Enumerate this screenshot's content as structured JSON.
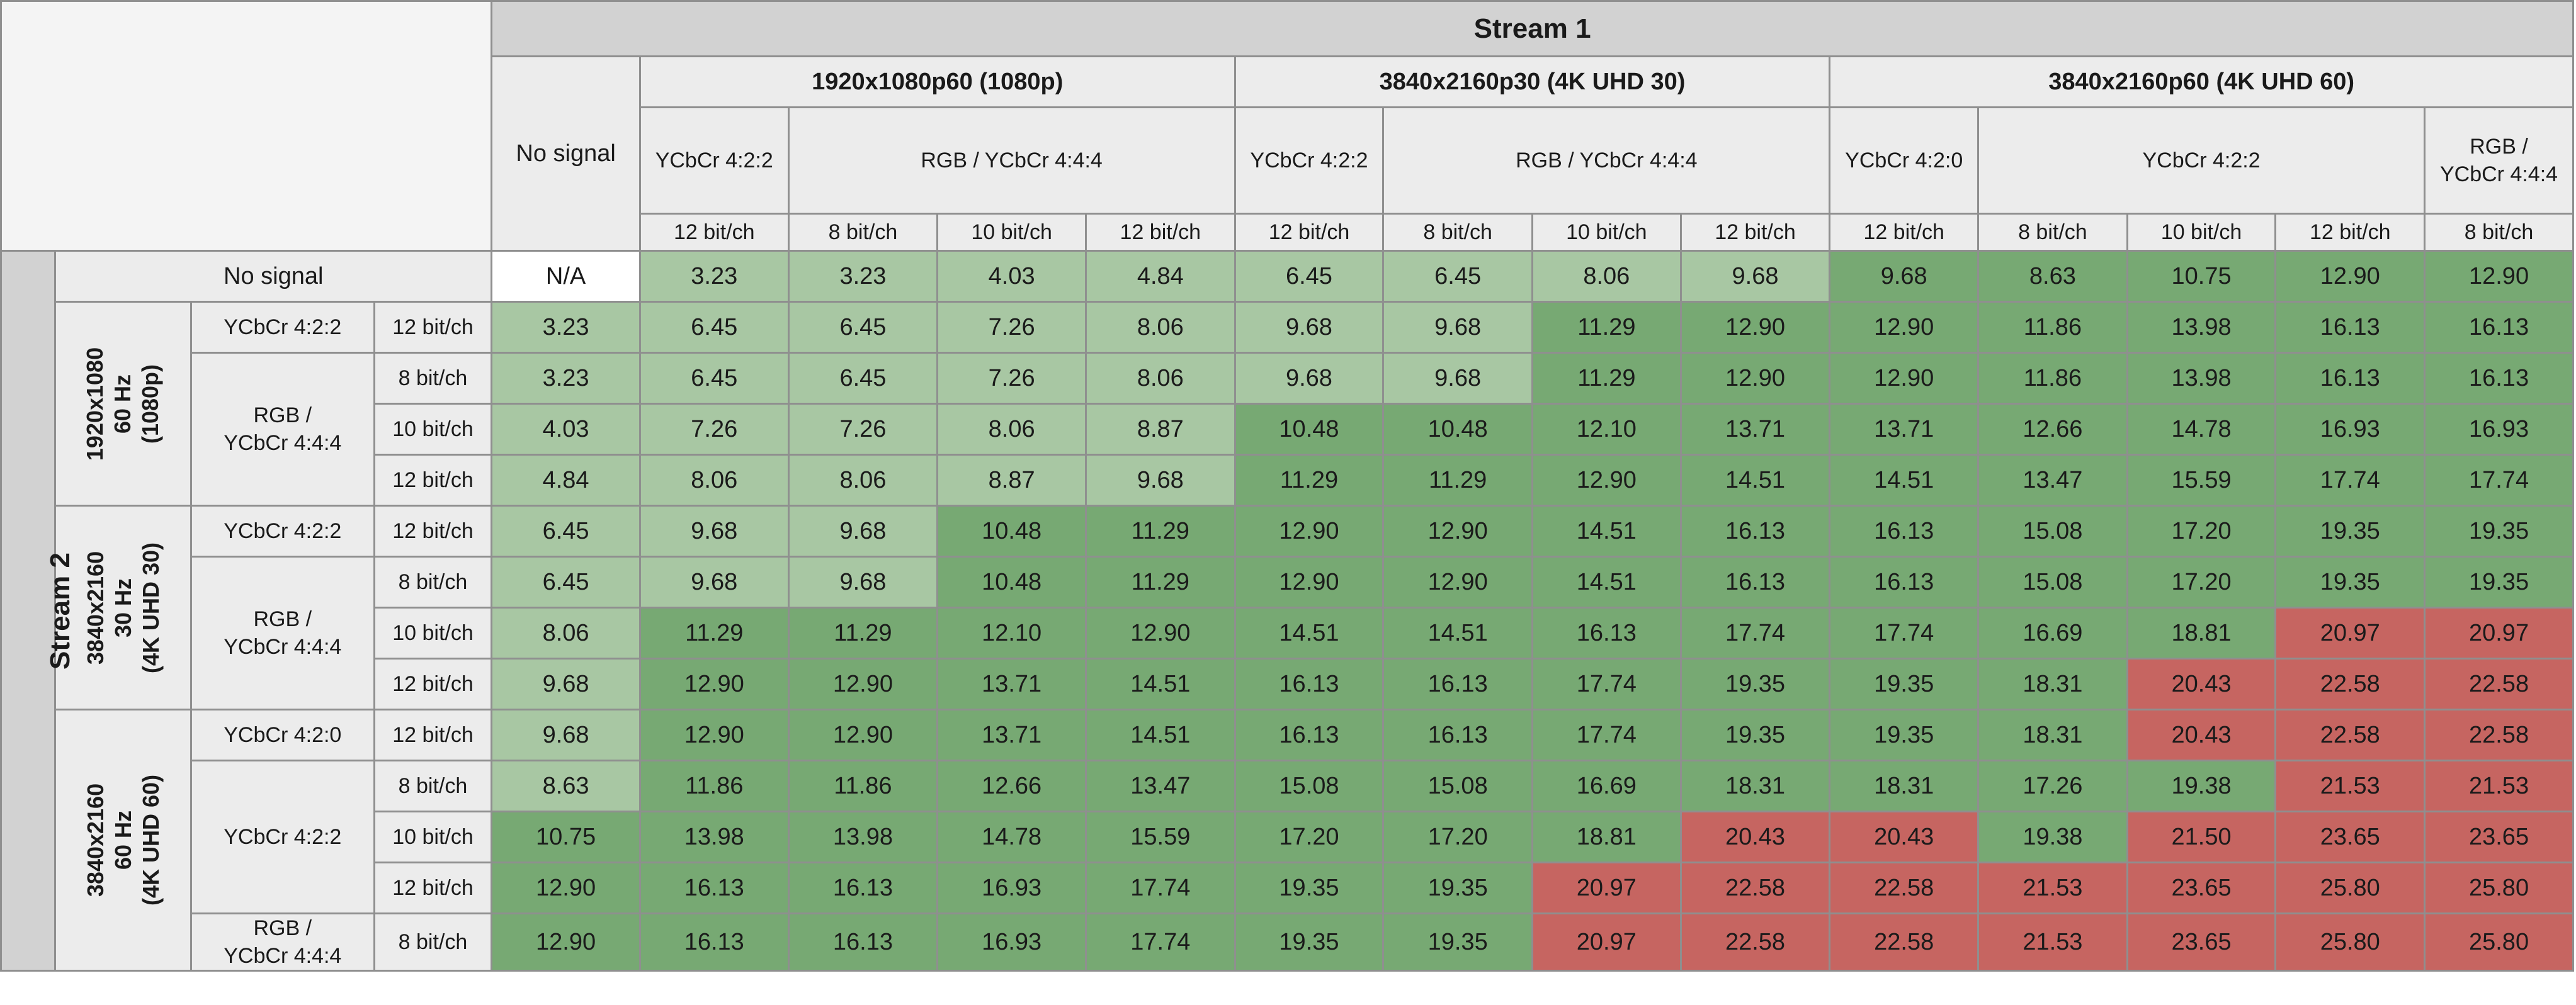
{
  "stream1_label": "Stream 1",
  "stream2_label": "Stream 2",
  "no_signal_label": "No signal",
  "formats": {
    "f1080": "1920x1080p60 (1080p)",
    "f4k30": "3840x2160p30 (4K UHD 30)",
    "f4k60": "3840x2160p60 (4K UHD 60)"
  },
  "row_groups": {
    "g1080": "1920x1080\n60 Hz\n(1080p)",
    "g4k30": "3840x2160\n30 Hz\n(4K UHD 30)",
    "g4k60": "3840x2160\n60 Hz\n(4K UHD 60)"
  },
  "columns": [
    {
      "format": "1920x1080p60 (1080p)",
      "sampling": "YCbCr 4:2:2",
      "depth": "12 bit/ch"
    },
    {
      "format": "1920x1080p60 (1080p)",
      "sampling": "RGB / YCbCr 4:4:4",
      "depth": "8 bit/ch"
    },
    {
      "format": "1920x1080p60 (1080p)",
      "sampling": "RGB / YCbCr 4:4:4",
      "depth": "10 bit/ch"
    },
    {
      "format": "1920x1080p60 (1080p)",
      "sampling": "RGB / YCbCr 4:4:4",
      "depth": "12 bit/ch"
    },
    {
      "format": "3840x2160p30 (4K UHD 30)",
      "sampling": "YCbCr 4:2:2",
      "depth": "12 bit/ch"
    },
    {
      "format": "3840x2160p30 (4K UHD 30)",
      "sampling": "RGB / YCbCr 4:4:4",
      "depth": "8 bit/ch"
    },
    {
      "format": "3840x2160p30 (4K UHD 30)",
      "sampling": "RGB / YCbCr 4:4:4",
      "depth": "10 bit/ch"
    },
    {
      "format": "3840x2160p30 (4K UHD 30)",
      "sampling": "RGB / YCbCr 4:4:4",
      "depth": "12 bit/ch"
    },
    {
      "format": "3840x2160p60 (4K UHD 60)",
      "sampling": "YCbCr 4:2:0",
      "depth": "12 bit/ch"
    },
    {
      "format": "3840x2160p60 (4K UHD 60)",
      "sampling": "YCbCr 4:2:2",
      "depth": "8 bit/ch"
    },
    {
      "format": "3840x2160p60 (4K UHD 60)",
      "sampling": "YCbCr 4:2:2",
      "depth": "10 bit/ch"
    },
    {
      "format": "3840x2160p60 (4K UHD 60)",
      "sampling": "YCbCr 4:2:2",
      "depth": "12 bit/ch"
    },
    {
      "format": "3840x2160p60 (4K UHD 60)",
      "sampling": "RGB / YCbCr 4:4:4",
      "depth": "8 bit/ch"
    }
  ],
  "samplings": {
    "ycc422": "YCbCr 4:2:2",
    "rgb444": "RGB / YCbCr 4:4:4",
    "rgb444_wrapped": "RGB /\nYCbCr 4:4:4",
    "ycc420": "YCbCr 4:2:0"
  },
  "depths": {
    "b8": "8 bit/ch",
    "b10": "10 bit/ch",
    "b12": "12 bit/ch"
  },
  "legend_colors": {
    "na": "#ffffff",
    "light_green": "#a8c7a3",
    "green": "#77a973",
    "red": "#c66561"
  },
  "rows": [
    {
      "stream2": "No signal",
      "values": [
        "N/A",
        "3.23",
        "3.23",
        "4.03",
        "4.84",
        "6.45",
        "6.45",
        "8.06",
        "9.68",
        "9.68",
        "8.63",
        "10.75",
        "12.90",
        "12.90"
      ],
      "levels": [
        "na",
        "lg",
        "lg",
        "lg",
        "lg",
        "lg",
        "lg",
        "lg",
        "lg",
        "g",
        "g",
        "g",
        "g",
        "g"
      ]
    },
    {
      "stream2": "1920x1080 60 Hz (1080p) / YCbCr 4:2:2 / 12 bit/ch",
      "values": [
        "3.23",
        "6.45",
        "6.45",
        "7.26",
        "8.06",
        "9.68",
        "9.68",
        "11.29",
        "12.90",
        "12.90",
        "11.86",
        "13.98",
        "16.13",
        "16.13"
      ],
      "levels": [
        "lg",
        "lg",
        "lg",
        "lg",
        "lg",
        "lg",
        "lg",
        "g",
        "g",
        "g",
        "g",
        "g",
        "g",
        "g"
      ]
    },
    {
      "stream2": "1920x1080 60 Hz (1080p) / RGB / YCbCr 4:4:4 / 8 bit/ch",
      "values": [
        "3.23",
        "6.45",
        "6.45",
        "7.26",
        "8.06",
        "9.68",
        "9.68",
        "11.29",
        "12.90",
        "12.90",
        "11.86",
        "13.98",
        "16.13",
        "16.13"
      ],
      "levels": [
        "lg",
        "lg",
        "lg",
        "lg",
        "lg",
        "lg",
        "lg",
        "g",
        "g",
        "g",
        "g",
        "g",
        "g",
        "g"
      ]
    },
    {
      "stream2": "1920x1080 60 Hz (1080p) / RGB / YCbCr 4:4:4 / 10 bit/ch",
      "values": [
        "4.03",
        "7.26",
        "7.26",
        "8.06",
        "8.87",
        "10.48",
        "10.48",
        "12.10",
        "13.71",
        "13.71",
        "12.66",
        "14.78",
        "16.93",
        "16.93"
      ],
      "levels": [
        "lg",
        "lg",
        "lg",
        "lg",
        "lg",
        "g",
        "g",
        "g",
        "g",
        "g",
        "g",
        "g",
        "g",
        "g"
      ]
    },
    {
      "stream2": "1920x1080 60 Hz (1080p) / RGB / YCbCr 4:4:4 / 12 bit/ch",
      "values": [
        "4.84",
        "8.06",
        "8.06",
        "8.87",
        "9.68",
        "11.29",
        "11.29",
        "12.90",
        "14.51",
        "14.51",
        "13.47",
        "15.59",
        "17.74",
        "17.74"
      ],
      "levels": [
        "lg",
        "lg",
        "lg",
        "lg",
        "lg",
        "g",
        "g",
        "g",
        "g",
        "g",
        "g",
        "g",
        "g",
        "g"
      ]
    },
    {
      "stream2": "3840x2160 30 Hz (4K UHD 30) / YCbCr 4:2:2 / 12 bit/ch",
      "values": [
        "6.45",
        "9.68",
        "9.68",
        "10.48",
        "11.29",
        "12.90",
        "12.90",
        "14.51",
        "16.13",
        "16.13",
        "15.08",
        "17.20",
        "19.35",
        "19.35"
      ],
      "levels": [
        "lg",
        "lg",
        "lg",
        "g",
        "g",
        "g",
        "g",
        "g",
        "g",
        "g",
        "g",
        "g",
        "g",
        "g"
      ]
    },
    {
      "stream2": "3840x2160 30 Hz (4K UHD 30) / RGB / YCbCr 4:4:4 / 8 bit/ch",
      "values": [
        "6.45",
        "9.68",
        "9.68",
        "10.48",
        "11.29",
        "12.90",
        "12.90",
        "14.51",
        "16.13",
        "16.13",
        "15.08",
        "17.20",
        "19.35",
        "19.35"
      ],
      "levels": [
        "lg",
        "lg",
        "lg",
        "g",
        "g",
        "g",
        "g",
        "g",
        "g",
        "g",
        "g",
        "g",
        "g",
        "g"
      ]
    },
    {
      "stream2": "3840x2160 30 Hz (4K UHD 30) / RGB / YCbCr 4:4:4 / 10 bit/ch",
      "values": [
        "8.06",
        "11.29",
        "11.29",
        "12.10",
        "12.90",
        "14.51",
        "14.51",
        "16.13",
        "17.74",
        "17.74",
        "16.69",
        "18.81",
        "20.97",
        "20.97"
      ],
      "levels": [
        "lg",
        "g",
        "g",
        "g",
        "g",
        "g",
        "g",
        "g",
        "g",
        "g",
        "g",
        "g",
        "r",
        "r"
      ]
    },
    {
      "stream2": "3840x2160 30 Hz (4K UHD 30) / RGB / YCbCr 4:4:4 / 12 bit/ch",
      "values": [
        "9.68",
        "12.90",
        "12.90",
        "13.71",
        "14.51",
        "16.13",
        "16.13",
        "17.74",
        "19.35",
        "19.35",
        "18.31",
        "20.43",
        "22.58",
        "22.58"
      ],
      "levels": [
        "lg",
        "g",
        "g",
        "g",
        "g",
        "g",
        "g",
        "g",
        "g",
        "g",
        "g",
        "r",
        "r",
        "r"
      ]
    },
    {
      "stream2": "3840x2160 60 Hz (4K UHD 60) / YCbCr 4:2:0 / 12 bit/ch",
      "values": [
        "9.68",
        "12.90",
        "12.90",
        "13.71",
        "14.51",
        "16.13",
        "16.13",
        "17.74",
        "19.35",
        "19.35",
        "18.31",
        "20.43",
        "22.58",
        "22.58"
      ],
      "levels": [
        "lg",
        "g",
        "g",
        "g",
        "g",
        "g",
        "g",
        "g",
        "g",
        "g",
        "g",
        "r",
        "r",
        "r"
      ]
    },
    {
      "stream2": "3840x2160 60 Hz (4K UHD 60) / YCbCr 4:2:2 / 8 bit/ch",
      "values": [
        "8.63",
        "11.86",
        "11.86",
        "12.66",
        "13.47",
        "15.08",
        "15.08",
        "16.69",
        "18.31",
        "18.31",
        "17.26",
        "19.38",
        "21.53",
        "21.53"
      ],
      "levels": [
        "lg",
        "g",
        "g",
        "g",
        "g",
        "g",
        "g",
        "g",
        "g",
        "g",
        "g",
        "g",
        "r",
        "r"
      ]
    },
    {
      "stream2": "3840x2160 60 Hz (4K UHD 60) / YCbCr 4:2:2 / 10 bit/ch",
      "values": [
        "10.75",
        "13.98",
        "13.98",
        "14.78",
        "15.59",
        "17.20",
        "17.20",
        "18.81",
        "20.43",
        "20.43",
        "19.38",
        "21.50",
        "23.65",
        "23.65"
      ],
      "levels": [
        "g",
        "g",
        "g",
        "g",
        "g",
        "g",
        "g",
        "g",
        "r",
        "r",
        "g",
        "r",
        "r",
        "r"
      ]
    },
    {
      "stream2": "3840x2160 60 Hz (4K UHD 60) / YCbCr 4:2:2 / 12 bit/ch",
      "values": [
        "12.90",
        "16.13",
        "16.13",
        "16.93",
        "17.74",
        "19.35",
        "19.35",
        "20.97",
        "22.58",
        "22.58",
        "21.53",
        "23.65",
        "25.80",
        "25.80"
      ],
      "levels": [
        "g",
        "g",
        "g",
        "g",
        "g",
        "g",
        "g",
        "r",
        "r",
        "r",
        "r",
        "r",
        "r",
        "r"
      ]
    },
    {
      "stream2": "3840x2160 60 Hz (4K UHD 60) / RGB / YCbCr 4:4:4 / 8 bit/ch",
      "values": [
        "12.90",
        "16.13",
        "16.13",
        "16.93",
        "17.74",
        "19.35",
        "19.35",
        "20.97",
        "22.58",
        "22.58",
        "21.53",
        "23.65",
        "25.80",
        "25.80"
      ],
      "levels": [
        "g",
        "g",
        "g",
        "g",
        "g",
        "g",
        "g",
        "r",
        "r",
        "r",
        "r",
        "r",
        "r",
        "r"
      ]
    }
  ]
}
